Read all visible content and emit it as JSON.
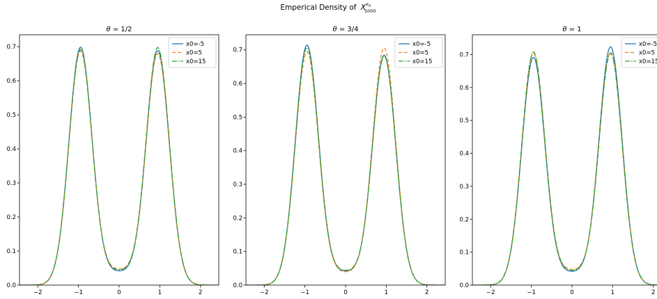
{
  "figure": {
    "suptitle_prefix": "Emperical Density of",
    "suptitle_var": "X",
    "suptitle_sup": "x",
    "suptitle_sup_sub": "0",
    "suptitle_sub": "5000"
  },
  "colors": {
    "x0=-5": "#1f77b4",
    "x0=5": "#ff7f0e",
    "x0=15": "#2ca02c",
    "axes": "#000000",
    "background": "#ffffff"
  },
  "chart_data": [
    {
      "type": "line",
      "title_prefix": "θ = ",
      "title_value": "1/2",
      "xlabel": "",
      "ylabel": "",
      "xlim": [
        -2.45,
        2.45
      ],
      "ylim": [
        0,
        0.735
      ],
      "x_ticks": [
        -2,
        -1,
        0,
        1,
        2
      ],
      "y_ticks": [
        0.0,
        0.1,
        0.2,
        0.3,
        0.4,
        0.5,
        0.6,
        0.7
      ],
      "legend": [
        "x0=-5",
        "x0=5",
        "x0=15"
      ],
      "legend_position": "top-right",
      "series": [
        {
          "name": "x0=-5",
          "style": "solid",
          "peak_left": 0.697,
          "peak_right": 0.687,
          "center": 0.042,
          "left_peak_x": -0.95,
          "right_peak_x": 0.95
        },
        {
          "name": "x0=5",
          "style": "dashed",
          "peak_left": 0.686,
          "peak_right": 0.678,
          "center": 0.048,
          "left_peak_x": -0.95,
          "right_peak_x": 0.95
        },
        {
          "name": "x0=15",
          "style": "dashdot",
          "peak_left": 0.69,
          "peak_right": 0.696,
          "center": 0.045,
          "left_peak_x": -0.95,
          "right_peak_x": 0.95
        }
      ]
    },
    {
      "type": "line",
      "title_prefix": "θ = ",
      "title_value": "3/4",
      "xlabel": "",
      "ylabel": "",
      "xlim": [
        -2.45,
        2.45
      ],
      "ylim": [
        0,
        0.745
      ],
      "x_ticks": [
        -2,
        -1,
        0,
        1,
        2
      ],
      "y_ticks": [
        0.0,
        0.1,
        0.2,
        0.3,
        0.4,
        0.5,
        0.6,
        0.7
      ],
      "legend": [
        "x0=-5",
        "x0=5",
        "x0=15"
      ],
      "legend_position": "top-right",
      "series": [
        {
          "name": "x0=-5",
          "style": "solid",
          "peak_left": 0.713,
          "peak_right": 0.683,
          "center": 0.042,
          "left_peak_x": -0.95,
          "right_peak_x": 0.95
        },
        {
          "name": "x0=5",
          "style": "dashed",
          "peak_left": 0.693,
          "peak_right": 0.704,
          "center": 0.04,
          "left_peak_x": -0.95,
          "right_peak_x": 0.95
        },
        {
          "name": "x0=15",
          "style": "dashdot",
          "peak_left": 0.705,
          "peak_right": 0.68,
          "center": 0.044,
          "left_peak_x": -0.95,
          "right_peak_x": 0.95
        }
      ]
    },
    {
      "type": "line",
      "title_prefix": "θ = ",
      "title_value": "1",
      "xlabel": "",
      "ylabel": "",
      "xlim": [
        -2.45,
        2.45
      ],
      "ylim": [
        0,
        0.76
      ],
      "x_ticks": [
        -2,
        -1,
        0,
        1,
        2
      ],
      "y_ticks": [
        0.0,
        0.1,
        0.2,
        0.3,
        0.4,
        0.5,
        0.6,
        0.7
      ],
      "legend": [
        "x0=-5",
        "x0=5",
        "x0=15"
      ],
      "legend_position": "top-right",
      "series": [
        {
          "name": "x0=-5",
          "style": "solid",
          "peak_left": 0.69,
          "peak_right": 0.722,
          "center": 0.042,
          "left_peak_x": -0.95,
          "right_peak_x": 0.95
        },
        {
          "name": "x0=5",
          "style": "dashed",
          "peak_left": 0.703,
          "peak_right": 0.705,
          "center": 0.048,
          "left_peak_x": -0.95,
          "right_peak_x": 0.95
        },
        {
          "name": "x0=15",
          "style": "dashdot",
          "peak_left": 0.706,
          "peak_right": 0.702,
          "center": 0.045,
          "left_peak_x": -0.95,
          "right_peak_x": 0.95
        }
      ]
    }
  ]
}
